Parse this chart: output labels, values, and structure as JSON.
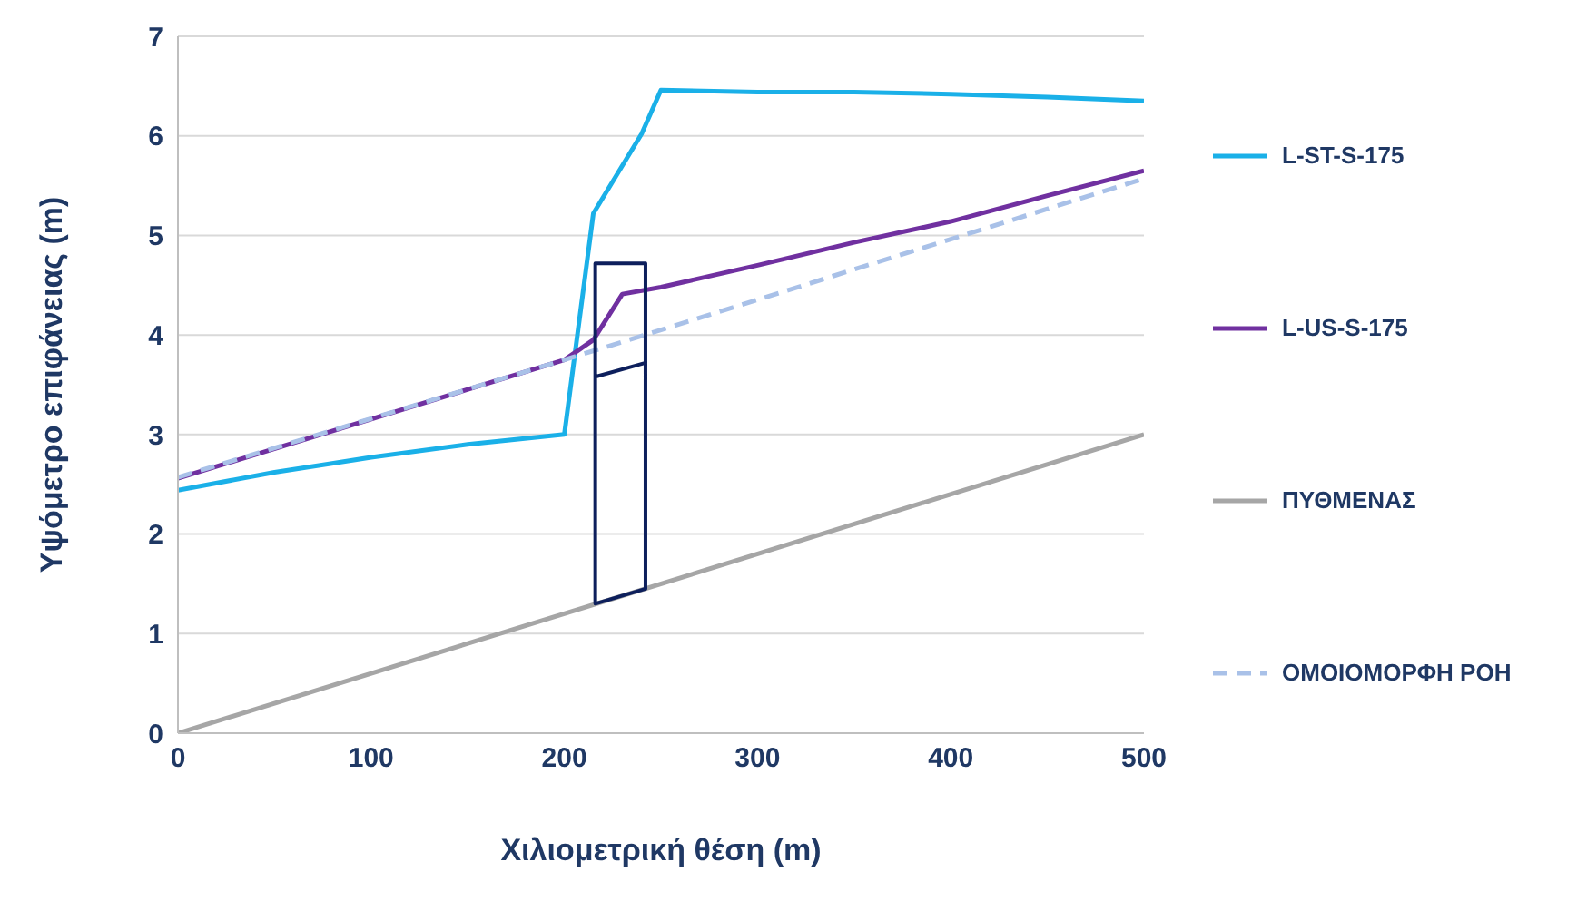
{
  "chart_data": {
    "type": "line",
    "xlabel": "Χιλιομετρική θέση (m)",
    "ylabel": "Υψόμετρο επιφάνειας (m)",
    "xlim": [
      0,
      500
    ],
    "xticks": [
      0,
      100,
      200,
      300,
      400,
      500
    ],
    "ylim": [
      0,
      7
    ],
    "yticks": [
      0,
      1,
      2,
      3,
      4,
      5,
      6,
      7
    ],
    "grid": "y",
    "legend": "right",
    "marker": "none",
    "series": [
      {
        "name": "L-ST-S-175",
        "color": "#1ab0e8",
        "x": [
          0,
          50,
          100,
          150,
          200,
          215,
          240,
          250,
          300,
          350,
          400,
          450,
          500
        ],
        "values": [
          2.44,
          2.62,
          2.77,
          2.9,
          3.0,
          5.22,
          6.02,
          6.46,
          6.44,
          6.44,
          6.42,
          6.39,
          6.35
        ]
      },
      {
        "name": "L-US-S-175",
        "color": "#7030a0",
        "x": [
          0,
          200,
          215,
          230,
          250,
          300,
          350,
          400,
          450,
          500
        ],
        "values": [
          2.56,
          3.75,
          3.95,
          4.41,
          4.48,
          4.7,
          4.93,
          5.14,
          5.4,
          5.65
        ]
      },
      {
        "name": "ΠΥΘΜΕΝΑΣ",
        "color": "#a6a6a6",
        "x": [
          0,
          500
        ],
        "values": [
          0,
          3
        ]
      },
      {
        "name": "ΟΜΟΙΟΜΟΡΦΗ ΡΟΗ",
        "color": "#a9c1e8",
        "line_style": "dashed",
        "x": [
          0,
          200,
          250,
          500
        ],
        "values": [
          2.57,
          3.75,
          4.05,
          5.57
        ]
      },
      {
        "color": "#0d1f5c",
        "x": [
          216,
          242,
          242,
          216,
          216,
          242,
          242
        ],
        "values": [
          3.58,
          3.72,
          4.72,
          4.72,
          1.3,
          1.45,
          3.72
        ]
      }
    ]
  }
}
